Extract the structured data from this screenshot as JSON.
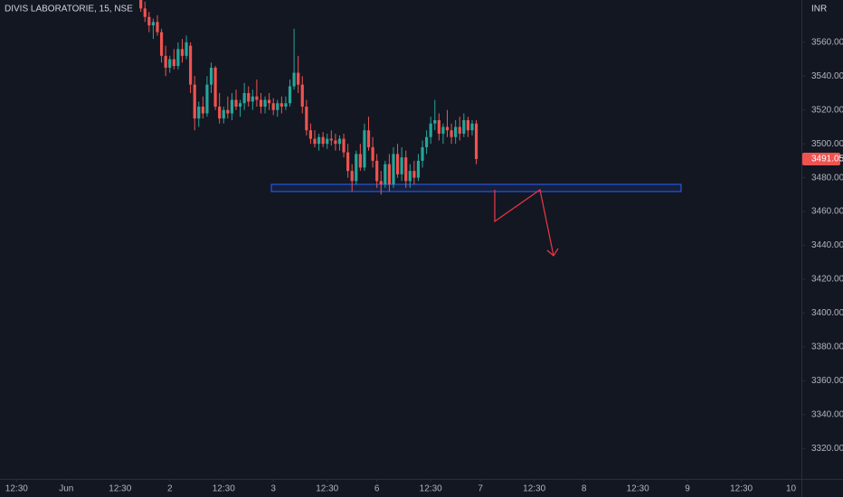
{
  "chart_data": {
    "type": "candlestick",
    "title": "DIVIS LABORATORIE, 15, NSE",
    "currency": "INR",
    "last_price": 3491.05,
    "up_color": "#26a69a",
    "down_color": "#ef5350",
    "grid": false,
    "x": [
      34,
      35,
      36,
      37,
      38,
      39,
      40,
      41,
      42,
      43,
      44,
      45,
      46,
      47,
      48,
      49,
      50,
      51,
      52,
      53,
      54,
      55,
      56,
      57,
      58,
      59,
      60,
      61,
      62,
      63,
      64,
      65,
      66,
      67,
      68,
      69,
      70,
      71,
      72,
      73,
      74,
      75,
      76,
      77,
      78,
      79,
      80,
      81,
      82,
      83,
      84,
      85,
      86,
      87,
      88,
      89,
      90,
      91,
      92,
      93,
      94,
      95,
      96,
      97,
      98,
      99,
      100,
      101,
      102,
      103,
      104,
      105,
      106,
      107,
      108,
      109,
      110,
      111,
      112,
      113,
      114,
      115
    ],
    "open": [
      3590,
      3580,
      3575,
      3570,
      3572,
      3566,
      3552,
      3545,
      3550,
      3546,
      3556,
      3552,
      3558,
      3535,
      3515,
      3522,
      3518,
      3535,
      3545,
      3522,
      3515,
      3520,
      3518,
      3526,
      3522,
      3524,
      3530,
      3525,
      3528,
      3526,
      3522,
      3526,
      3524,
      3520,
      3524,
      3522,
      3524,
      3534,
      3542,
      3535,
      3522,
      3508,
      3503,
      3500,
      3504,
      3500,
      3503,
      3502,
      3500,
      3503,
      3495,
      3484,
      3478,
      3494,
      3486,
      3508,
      3498,
      3490,
      3478,
      3476,
      3488,
      3476,
      3494,
      3482,
      3492,
      3478,
      3484,
      3480,
      3490,
      3498,
      3504,
      3512,
      3514,
      3506,
      3510,
      3508,
      3504,
      3510,
      3506,
      3514,
      3508,
      3512
    ],
    "high": [
      3592,
      3584,
      3578,
      3574,
      3576,
      3568,
      3558,
      3552,
      3556,
      3560,
      3562,
      3564,
      3560,
      3540,
      3525,
      3528,
      3540,
      3548,
      3546,
      3530,
      3522,
      3528,
      3530,
      3532,
      3526,
      3536,
      3534,
      3532,
      3538,
      3530,
      3528,
      3530,
      3527,
      3526,
      3528,
      3528,
      3538,
      3568,
      3552,
      3540,
      3526,
      3512,
      3508,
      3506,
      3507,
      3506,
      3508,
      3506,
      3505,
      3506,
      3500,
      3488,
      3496,
      3500,
      3512,
      3516,
      3504,
      3494,
      3484,
      3490,
      3494,
      3498,
      3500,
      3498,
      3496,
      3488,
      3490,
      3494,
      3502,
      3508,
      3516,
      3526,
      3518,
      3512,
      3520,
      3512,
      3514,
      3516,
      3518,
      3516,
      3514,
      3514
    ],
    "low": [
      3578,
      3572,
      3566,
      3562,
      3564,
      3548,
      3540,
      3542,
      3544,
      3544,
      3548,
      3550,
      3530,
      3508,
      3510,
      3515,
      3516,
      3530,
      3520,
      3512,
      3512,
      3515,
      3514,
      3520,
      3516,
      3520,
      3522,
      3520,
      3522,
      3518,
      3518,
      3520,
      3517,
      3516,
      3518,
      3520,
      3522,
      3532,
      3530,
      3518,
      3505,
      3500,
      3498,
      3496,
      3498,
      3497,
      3499,
      3496,
      3496,
      3492,
      3480,
      3472,
      3476,
      3484,
      3484,
      3496,
      3486,
      3474,
      3470,
      3474,
      3472,
      3474,
      3480,
      3478,
      3474,
      3474,
      3476,
      3478,
      3486,
      3494,
      3500,
      3508,
      3502,
      3500,
      3504,
      3500,
      3500,
      3502,
      3504,
      3504,
      3505,
      3488
    ],
    "close": [
      3580,
      3575,
      3570,
      3572,
      3566,
      3552,
      3545,
      3550,
      3546,
      3556,
      3552,
      3560,
      3535,
      3515,
      3522,
      3518,
      3535,
      3545,
      3522,
      3515,
      3520,
      3518,
      3526,
      3522,
      3524,
      3530,
      3525,
      3528,
      3526,
      3522,
      3526,
      3524,
      3520,
      3524,
      3522,
      3524,
      3534,
      3542,
      3535,
      3522,
      3508,
      3503,
      3500,
      3504,
      3500,
      3503,
      3502,
      3500,
      3503,
      3495,
      3484,
      3478,
      3494,
      3486,
      3508,
      3498,
      3490,
      3478,
      3476,
      3488,
      3476,
      3494,
      3482,
      3492,
      3478,
      3484,
      3480,
      3490,
      3498,
      3504,
      3512,
      3514,
      3506,
      3510,
      3508,
      3504,
      3510,
      3506,
      3514,
      3508,
      3512,
      3491.05
    ],
    "ylim": [
      3302,
      3585
    ],
    "yticks": [
      {
        "value": 3320,
        "label": "3320.00"
      },
      {
        "value": 3340,
        "label": "3340.00"
      },
      {
        "value": 3360,
        "label": "3360.00"
      },
      {
        "value": 3380,
        "label": "3380.00"
      },
      {
        "value": 3400,
        "label": "3400.00"
      },
      {
        "value": 3420,
        "label": "3420.00"
      },
      {
        "value": 3440,
        "label": "3440.00"
      },
      {
        "value": 3460,
        "label": "3460.00"
      },
      {
        "value": 3480,
        "label": "3480.00"
      },
      {
        "value": 3500,
        "label": "3500.00"
      },
      {
        "value": 3520,
        "label": "3520.00"
      },
      {
        "value": 3540,
        "label": "3540.00"
      },
      {
        "value": 3560,
        "label": "3560.00"
      }
    ],
    "xlim": [
      0,
      193.5
    ],
    "xticks": [
      {
        "value": 4,
        "label": "12:30"
      },
      {
        "value": 16,
        "label": "Jun"
      },
      {
        "value": 29,
        "label": "12:30"
      },
      {
        "value": 41,
        "label": "2"
      },
      {
        "value": 54,
        "label": "12:30"
      },
      {
        "value": 66,
        "label": "3"
      },
      {
        "value": 79,
        "label": "12:30"
      },
      {
        "value": 91,
        "label": "6"
      },
      {
        "value": 104,
        "label": "12:30"
      },
      {
        "value": 116,
        "label": "7"
      },
      {
        "value": 129,
        "label": "12:30"
      },
      {
        "value": 141,
        "label": "8"
      },
      {
        "value": 154,
        "label": "12:30"
      },
      {
        "value": 166,
        "label": "9"
      },
      {
        "value": 179,
        "label": "12:30"
      },
      {
        "value": 191,
        "label": "10"
      }
    ]
  }
}
